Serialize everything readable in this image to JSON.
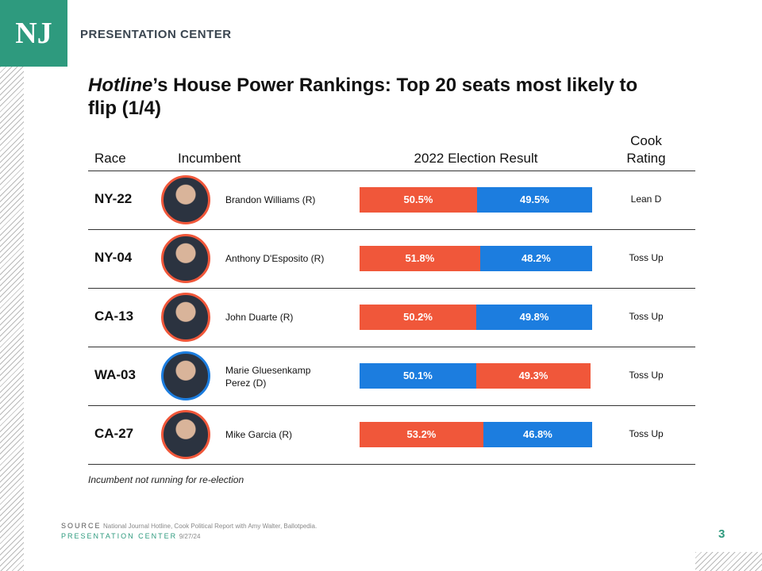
{
  "header": {
    "logo": "NJ",
    "label": "PRESENTATION CENTER"
  },
  "title": {
    "italic": "Hotline",
    "rest": "’s House Power Rankings: Top 20 seats most likely to flip (1/4)"
  },
  "table": {
    "columns": [
      "Race",
      "Incumbent",
      "2022 Election Result",
      "Cook Rating"
    ],
    "rows": [
      {
        "race": "NY-22",
        "incumbent": "Brandon Williams (R)",
        "party_color": "#f0573a",
        "result": [
          {
            "value": 50.5,
            "label": "50.5%",
            "color": "#f0573a"
          },
          {
            "value": 49.5,
            "label": "49.5%",
            "color": "#1c7ddf"
          }
        ],
        "rating": "Lean D"
      },
      {
        "race": "NY-04",
        "incumbent": "Anthony D'Esposito (R)",
        "party_color": "#f0573a",
        "result": [
          {
            "value": 51.8,
            "label": "51.8%",
            "color": "#f0573a"
          },
          {
            "value": 48.2,
            "label": "48.2%",
            "color": "#1c7ddf"
          }
        ],
        "rating": "Toss Up"
      },
      {
        "race": "CA-13",
        "incumbent": "John Duarte (R)",
        "party_color": "#f0573a",
        "result": [
          {
            "value": 50.2,
            "label": "50.2%",
            "color": "#f0573a"
          },
          {
            "value": 49.8,
            "label": "49.8%",
            "color": "#1c7ddf"
          }
        ],
        "rating": "Toss Up"
      },
      {
        "race": "WA-03",
        "incumbent": "Marie Gluesenkamp Perez (D)",
        "party_color": "#1c7ddf",
        "result": [
          {
            "value": 50.1,
            "label": "50.1%",
            "color": "#1c7ddf"
          },
          {
            "value": 49.3,
            "label": "49.3%",
            "color": "#f0573a"
          }
        ],
        "rating": "Toss Up"
      },
      {
        "race": "CA-27",
        "incumbent": "Mike Garcia (R)",
        "party_color": "#f0573a",
        "result": [
          {
            "value": 53.2,
            "label": "53.2%",
            "color": "#f0573a"
          },
          {
            "value": 46.8,
            "label": "46.8%",
            "color": "#1c7ddf"
          }
        ],
        "rating": "Toss Up"
      }
    ]
  },
  "footnote": "Incumbent not running for re-election",
  "footer": {
    "source_label": "SOURCE",
    "source": "National Journal Hotline, Cook Political Report with Amy Walter, Ballotpedia.",
    "center": "PRESENTATION CENTER",
    "date": "9/27/24",
    "page": "3"
  }
}
